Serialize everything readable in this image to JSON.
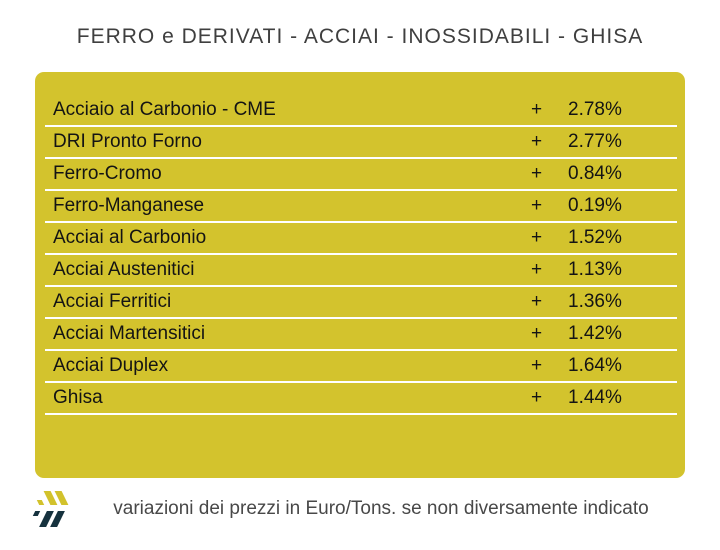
{
  "title": "FERRO e DERIVATI - ACCIAI - INOSSIDABILI - GHISA",
  "table": {
    "rows": [
      {
        "label": "Acciaio al Carbonio - CME",
        "sign": "+",
        "value": "2.78%"
      },
      {
        "label": "DRI Pronto Forno",
        "sign": "+",
        "value": "2.77%"
      },
      {
        "label": "Ferro-Cromo",
        "sign": "+",
        "value": "0.84%"
      },
      {
        "label": "Ferro-Manganese",
        "sign": "+",
        "value": "0.19%"
      },
      {
        "label": "Acciai al Carbonio",
        "sign": "+",
        "value": "1.52%"
      },
      {
        "label": "Acciai Austenitici",
        "sign": "+",
        "value": "1.13%"
      },
      {
        "label": "Acciai Ferritici",
        "sign": "+",
        "value": "1.36%"
      },
      {
        "label": "Acciai Martensitici",
        "sign": "+",
        "value": "1.42%"
      },
      {
        "label": "Acciai Duplex",
        "sign": "+",
        "value": "1.64%"
      },
      {
        "label": "Ghisa",
        "sign": "+",
        "value": "1.44%"
      }
    ]
  },
  "footer": {
    "note": "variazioni dei prezzi in Euro/Tons. se non diversamente indicato"
  },
  "colors": {
    "card_background": "#d3c32d",
    "row_separator": "#ffffff",
    "title_text": "#3f3f3f",
    "row_text": "#141414",
    "footer_text": "#484848",
    "logo_yellow": "#d2c22c",
    "logo_navy": "#16323e"
  },
  "chart_data": {
    "type": "table",
    "title": "FERRO e DERIVATI - ACCIAI - INOSSIDABILI - GHISA",
    "categories": [
      "Acciaio al Carbonio - CME",
      "DRI Pronto Forno",
      "Ferro-Cromo",
      "Ferro-Manganese",
      "Acciai al Carbonio",
      "Acciai Austenitici",
      "Acciai Ferritici",
      "Acciai Martensitici",
      "Acciai Duplex",
      "Ghisa"
    ],
    "values": [
      2.78,
      2.77,
      0.84,
      0.19,
      1.52,
      1.13,
      1.36,
      1.42,
      1.64,
      1.44
    ],
    "signs": [
      "+",
      "+",
      "+",
      "+",
      "+",
      "+",
      "+",
      "+",
      "+",
      "+"
    ],
    "unit": "percent variation",
    "note": "variazioni dei prezzi in Euro/Tons. se non diversamente indicato"
  }
}
